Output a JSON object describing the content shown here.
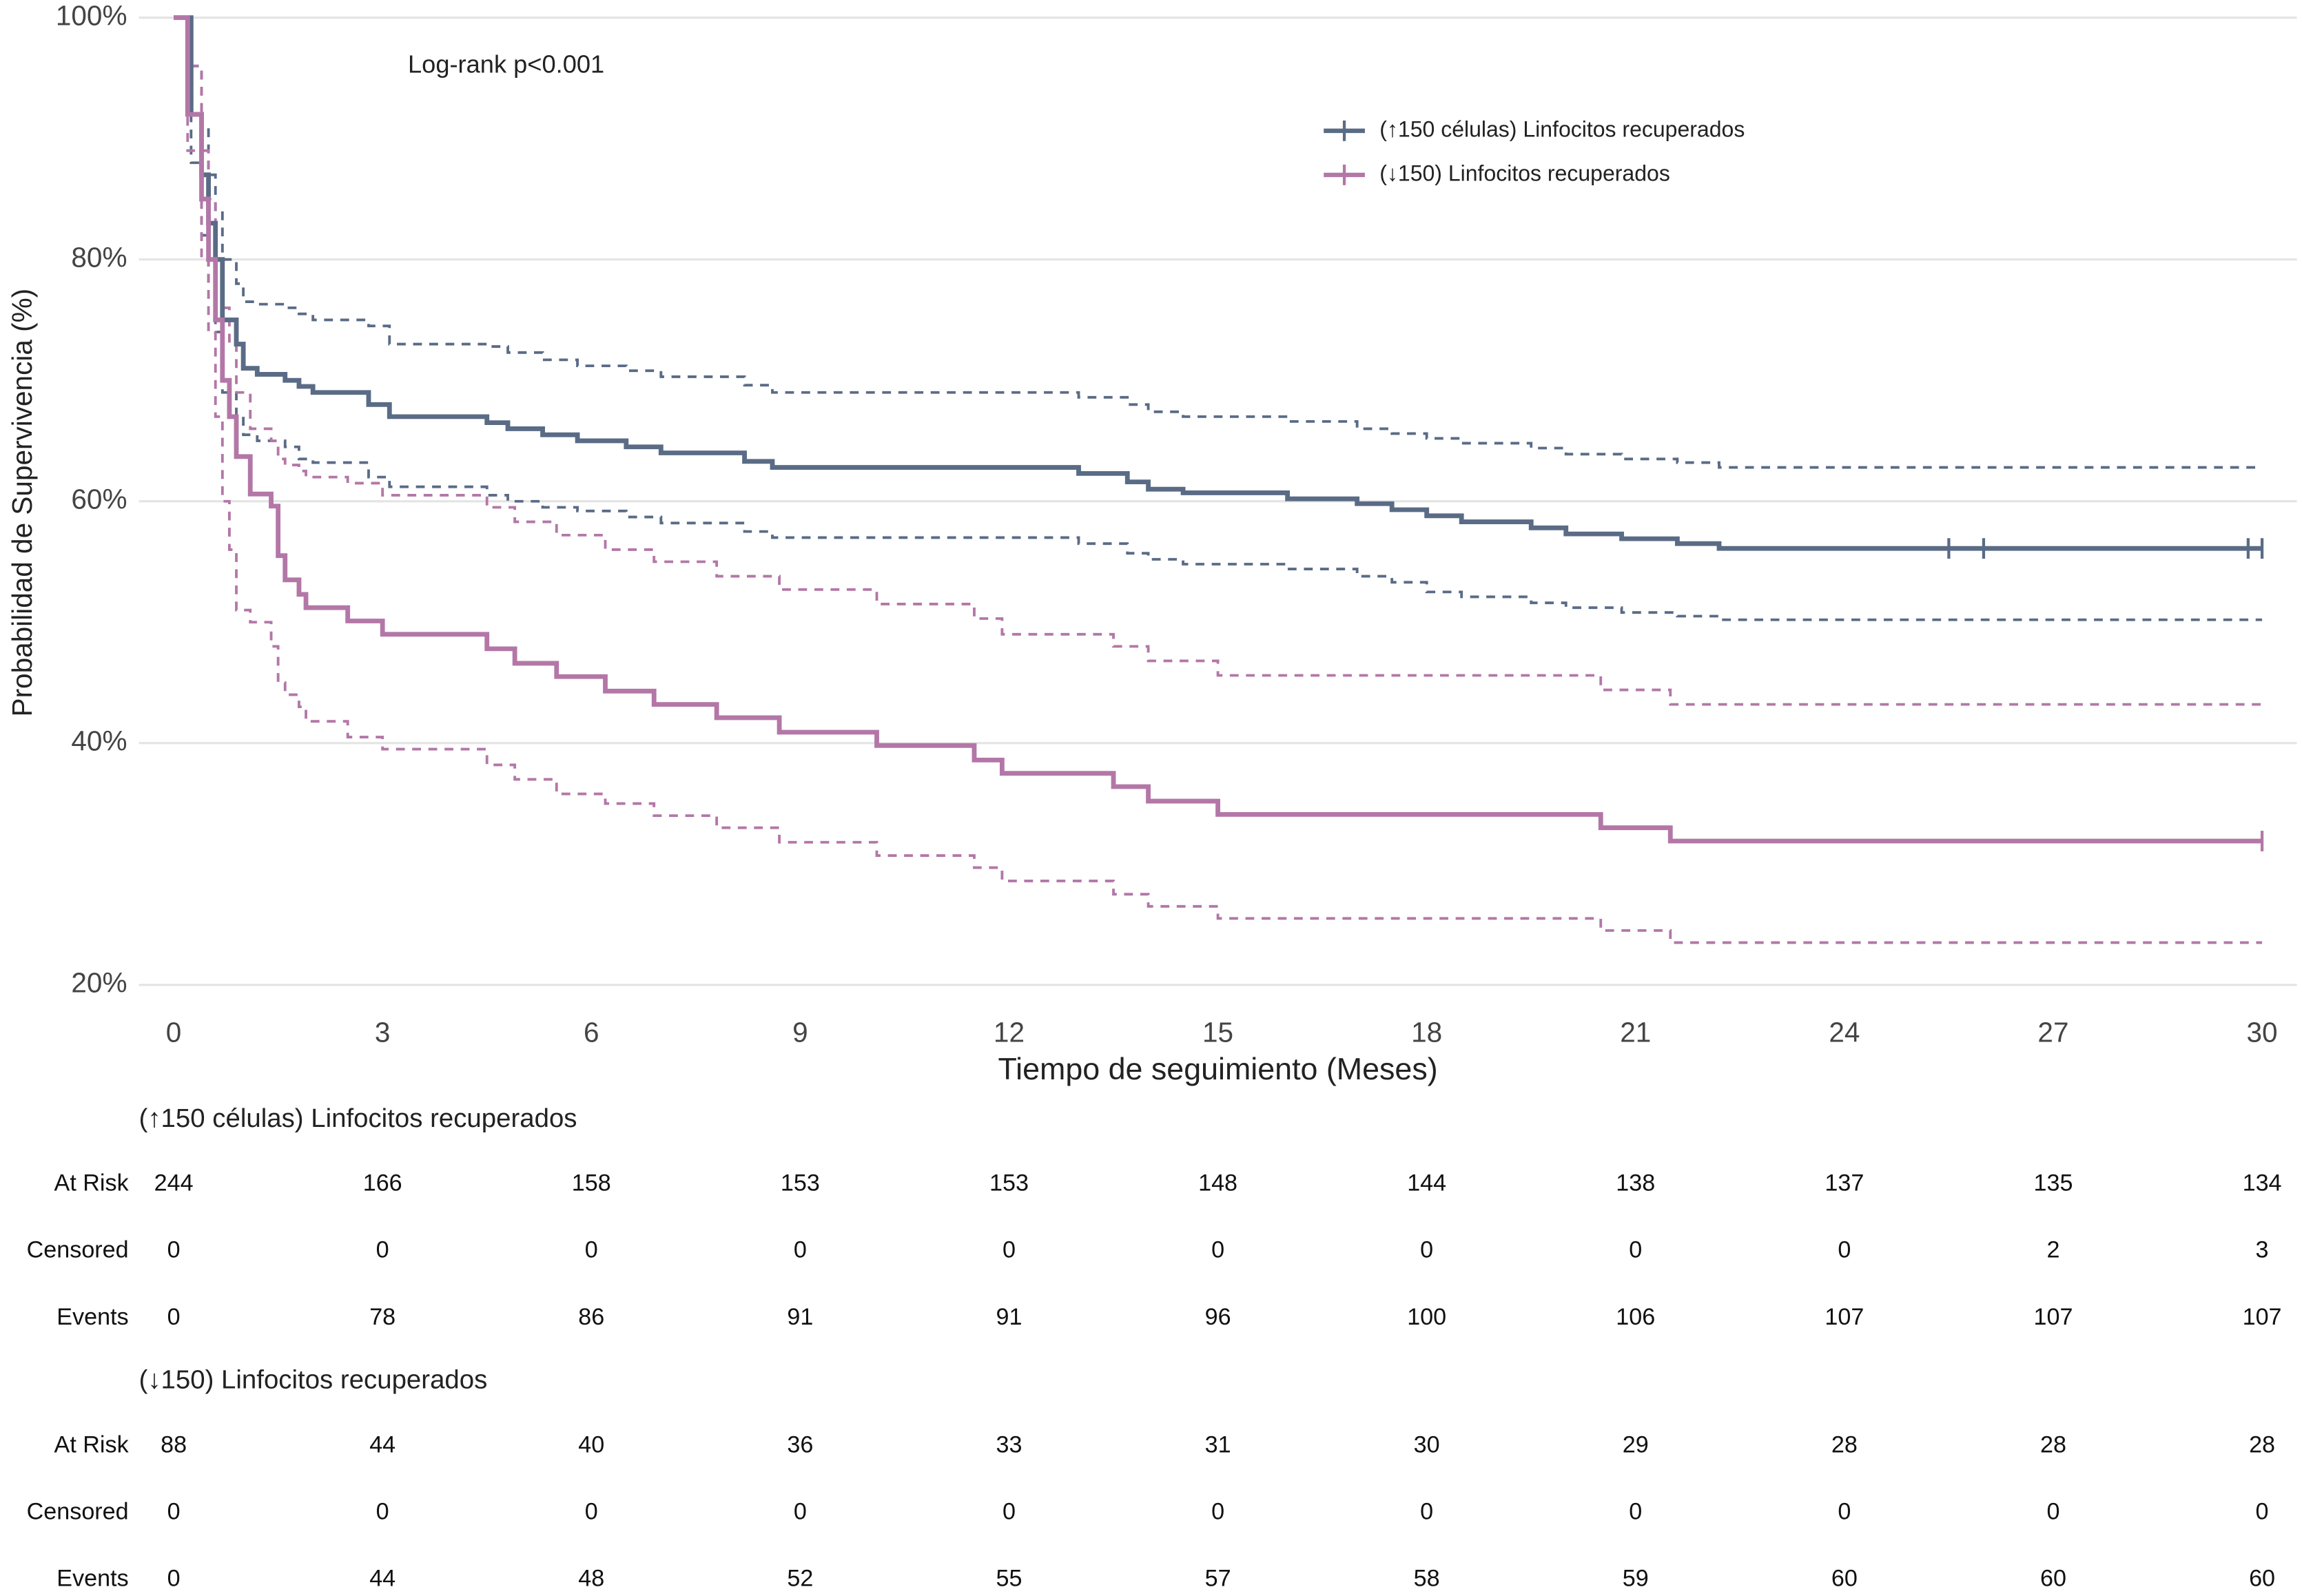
{
  "chart_data": {
    "type": "step",
    "x_label": "Tiempo de seguimiento (Meses)",
    "y_label": "Probabilidad de Supervivencia (%)",
    "annotation": "Log-rank p<0.001",
    "xlim": [
      -0.5,
      30.5
    ],
    "xticks": [
      0,
      3,
      6,
      9,
      12,
      15,
      18,
      21,
      24,
      27,
      30
    ],
    "ylim": [
      18.2,
      100
    ],
    "yticks": [
      {
        "value": 20,
        "label": "20%"
      },
      {
        "value": 40,
        "label": "40%"
      },
      {
        "value": 60,
        "label": "60%"
      },
      {
        "value": 80,
        "label": "80%"
      },
      {
        "value": 100,
        "label": "100%"
      }
    ],
    "grid": true,
    "legend": "upper right",
    "series": [
      {
        "name": "(↑150 células) Linfocitos recuperados",
        "color": "#5a6b86",
        "x": [
          0,
          0.25,
          0.4,
          0.5,
          0.6,
          0.7,
          0.9,
          1.0,
          1.2,
          1.6,
          1.8,
          2,
          2.8,
          3.1,
          4.5,
          4.8,
          5.3,
          5.8,
          6.5,
          7,
          8.2,
          8.6,
          13,
          13.7,
          14,
          14.5,
          16,
          17,
          17.5,
          18,
          18.5,
          19.5,
          20,
          20.8,
          21.6,
          22.2,
          30
        ],
        "values": [
          100,
          92,
          87,
          83,
          80,
          75,
          73,
          71,
          70.5,
          70,
          69.5,
          69,
          68,
          67,
          66.5,
          66,
          65.5,
          65,
          64.5,
          64,
          63.3,
          62.8,
          62.3,
          61.6,
          61,
          60.7,
          60.2,
          59.8,
          59.3,
          58.8,
          58.3,
          57.8,
          57.3,
          56.9,
          56.5,
          56.1,
          56.1
        ],
        "lower": [
          100,
          88,
          82,
          78,
          74,
          69,
          67,
          65.5,
          65,
          64.5,
          63.5,
          63.2,
          62,
          61.2,
          60.5,
          60,
          59.5,
          59.2,
          58.7,
          58.2,
          57.5,
          57,
          56.5,
          55.7,
          55.2,
          54.8,
          54.4,
          53.8,
          53.3,
          52.5,
          52.1,
          51.6,
          51.2,
          50.8,
          50.5,
          50.2,
          50.2
        ],
        "upper": [
          100,
          96,
          91,
          87,
          84,
          80,
          78,
          76.5,
          76.3,
          76,
          75.5,
          75,
          74.5,
          73,
          72.8,
          72.3,
          71.7,
          71.2,
          70.8,
          70.3,
          69.6,
          69,
          68.6,
          68,
          67.4,
          67,
          66.6,
          66,
          65.6,
          65.2,
          64.8,
          64.4,
          63.9,
          63.5,
          63.2,
          62.8,
          62.8
        ],
        "censored": [
          25.5,
          26,
          29.8,
          30
        ]
      },
      {
        "name": "(↓150) Linfocitos recuperados",
        "color": "#b377a7",
        "x": [
          0,
          0.2,
          0.4,
          0.5,
          0.6,
          0.7,
          0.8,
          0.9,
          1.1,
          1.4,
          1.5,
          1.6,
          1.8,
          1.9,
          2.5,
          3,
          4.5,
          4.9,
          5.5,
          6.2,
          6.9,
          7.8,
          8.7,
          10.1,
          11.5,
          11.9,
          13.5,
          14,
          15,
          20.5,
          21.5,
          30
        ],
        "values": [
          100,
          92,
          85,
          80,
          75,
          70,
          67,
          63.7,
          60.6,
          59.6,
          55.5,
          53.5,
          52.3,
          51.2,
          50.1,
          49,
          47.8,
          46.6,
          45.5,
          44.3,
          43.2,
          42.1,
          40.9,
          39.8,
          38.6,
          37.5,
          36.4,
          35.2,
          34.1,
          33,
          31.9,
          31.9
        ],
        "lower": [
          100,
          89,
          80,
          74,
          67,
          60,
          56,
          51,
          50,
          48,
          45,
          44,
          43,
          41.8,
          40.5,
          39.5,
          38.2,
          37,
          35.8,
          35,
          34,
          33,
          31.8,
          30.7,
          29.7,
          28.6,
          27.5,
          26.5,
          25.5,
          24.5,
          23.5,
          23.5
        ],
        "upper": [
          100,
          96,
          89,
          85,
          80,
          76,
          73,
          69,
          66,
          65,
          63.5,
          63,
          62.5,
          62,
          61.5,
          60.5,
          59.5,
          58.3,
          57.2,
          56,
          55,
          53.8,
          52.7,
          51.5,
          50.3,
          49,
          48,
          46.8,
          45.6,
          44.4,
          43.2,
          43.2
        ],
        "censored": [
          30
        ]
      }
    ],
    "risk_table": {
      "row_labels": [
        "At Risk",
        "Censored",
        "Events"
      ],
      "groups": [
        {
          "rows": [
            [
              244,
              166,
              158,
              153,
              153,
              148,
              144,
              138,
              137,
              135,
              134
            ],
            [
              0,
              0,
              0,
              0,
              0,
              0,
              0,
              0,
              0,
              2,
              3
            ],
            [
              0,
              78,
              86,
              91,
              91,
              96,
              100,
              106,
              107,
              107,
              107
            ]
          ]
        },
        {
          "rows": [
            [
              88,
              44,
              40,
              36,
              33,
              31,
              30,
              29,
              28,
              28,
              28
            ],
            [
              0,
              0,
              0,
              0,
              0,
              0,
              0,
              0,
              0,
              0,
              0
            ],
            [
              0,
              44,
              48,
              52,
              55,
              57,
              58,
              59,
              60,
              60,
              60
            ]
          ]
        }
      ]
    }
  }
}
